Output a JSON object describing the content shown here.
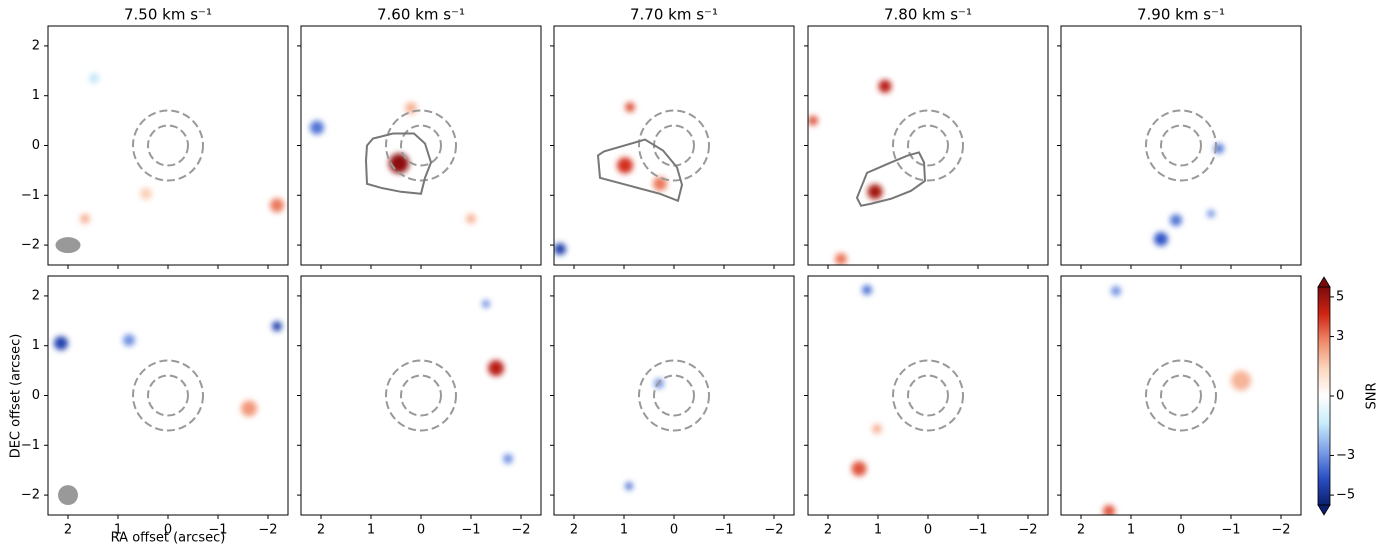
{
  "chart_data": {
    "type": "channel_map",
    "xlabel": "RA offset (arcsec)",
    "ylabel": "DEC offset (arcsec)",
    "xlim": [
      2.4,
      -2.4
    ],
    "ylim": [
      -2.4,
      2.4
    ],
    "xticks": [
      2,
      1,
      0,
      {
        "value": -1,
        "label": "−1"
      },
      {
        "value": -2,
        "label": "−2"
      }
    ],
    "yticks": [
      {
        "value": -2,
        "label": "−2"
      },
      {
        "value": -1,
        "label": "−1"
      },
      0,
      1,
      2
    ],
    "circle_radii": [
      0.4,
      0.7
    ],
    "colorbar": {
      "label": "SNR",
      "lim": [
        -5.5,
        5.5
      ],
      "ticks": [
        {
          "value": -5,
          "label": "−5"
        },
        {
          "value": -3,
          "label": "−3"
        },
        0,
        3,
        5
      ],
      "colors": [
        "#0a1f6e",
        "#2b50c4",
        "#7ea0e8",
        "#c8ecfa",
        "#ffffff",
        "#fbd7bf",
        "#f08a6a",
        "#d02515",
        "#7a0a0a"
      ]
    },
    "panels": [
      {
        "title": "7.50 km s⁻¹",
        "beam": {
          "x": 2,
          "y": -2,
          "major": 0.5,
          "minor": 0.32
        },
        "sources": [
          {
            "x": -2.18,
            "y": -1.2,
            "snr": 3,
            "r": 0.14
          },
          {
            "x": 0.44,
            "y": -0.97,
            "snr": 1.5,
            "r": 0.12
          },
          {
            "x": 1.48,
            "y": 1.35,
            "snr": -1.5,
            "r": 0.1
          },
          {
            "x": 1.66,
            "y": -1.47,
            "snr": 2,
            "r": 0.1
          }
        ]
      },
      {
        "title": "7.60 km s⁻¹",
        "contour": {
          "x": [
            1.08,
            0.96,
            0.56,
            0.14,
            -0.08,
            -0.2,
            -0.08,
            0,
            0.4,
            0.8,
            1.08,
            1.1
          ],
          "y": [
            0,
            0.14,
            0.24,
            0.24,
            0.04,
            -0.34,
            -0.65,
            -0.97,
            -0.93,
            -0.85,
            -0.77,
            -0.3
          ]
        },
        "sources": [
          {
            "x": 0.44,
            "y": -0.36,
            "snr": 5.2,
            "r": 0.2
          },
          {
            "x": 0.2,
            "y": 0.75,
            "snr": 2,
            "r": 0.12
          },
          {
            "x": 2.08,
            "y": 0.36,
            "snr": -3.5,
            "r": 0.14
          },
          {
            "x": -1.0,
            "y": -1.47,
            "snr": 2,
            "r": 0.1
          }
        ]
      },
      {
        "title": "7.70 km s⁻¹",
        "contour": {
          "x": [
            1.52,
            1.4,
            0.58,
            0.22,
            -0.06,
            -0.16,
            -0.08,
            0.28,
            0.88,
            1.48
          ],
          "y": [
            -0.2,
            -0.12,
            0.12,
            -0.1,
            -0.44,
            -0.79,
            -1.11,
            -0.97,
            -0.81,
            -0.65
          ]
        },
        "sources": [
          {
            "x": 0.98,
            "y": -0.4,
            "snr": 4,
            "r": 0.16
          },
          {
            "x": 0.28,
            "y": -0.77,
            "snr": 3,
            "r": 0.14
          },
          {
            "x": 0.88,
            "y": 0.77,
            "snr": 3.5,
            "r": 0.1
          },
          {
            "x": 2.28,
            "y": -2.08,
            "snr": -4.5,
            "r": 0.12
          }
        ]
      },
      {
        "title": "7.80 km s⁻¹",
        "contour": {
          "x": [
            1.42,
            1.22,
            0.74,
            0.4,
            0.18,
            0.08,
            0.06,
            0.34,
            0.74,
            1.14,
            1.34
          ],
          "y": [
            -1.05,
            -0.55,
            -0.34,
            -0.2,
            -0.14,
            -0.34,
            -0.71,
            -0.91,
            -1.07,
            -1.17,
            -1.21
          ]
        },
        "sources": [
          {
            "x": 1.06,
            "y": -0.93,
            "snr": 4.8,
            "r": 0.15
          },
          {
            "x": 0.86,
            "y": 1.19,
            "snr": 4.5,
            "r": 0.13
          },
          {
            "x": 2.3,
            "y": 0.5,
            "snr": 3.5,
            "r": 0.1
          },
          {
            "x": 1.74,
            "y": -2.28,
            "snr": 3,
            "r": 0.12
          }
        ]
      },
      {
        "title": "7.90 km s⁻¹",
        "sources": [
          {
            "x": 0.4,
            "y": -1.88,
            "snr": -4,
            "r": 0.14
          },
          {
            "x": 0.1,
            "y": -1.5,
            "snr": -3.5,
            "r": 0.12
          },
          {
            "x": -0.76,
            "y": -0.06,
            "snr": -3.5,
            "r": 0.1
          },
          {
            "x": -0.6,
            "y": -1.37,
            "snr": -3,
            "r": 0.08
          }
        ]
      },
      {
        "beam": {
          "x": 2,
          "y": -2,
          "major": 0.4,
          "minor": 0.4
        },
        "sources": [
          {
            "x": 2.14,
            "y": 1.05,
            "snr": -4.5,
            "r": 0.14
          },
          {
            "x": -2.18,
            "y": 1.39,
            "snr": -4.5,
            "r": 0.1
          },
          {
            "x": 0.78,
            "y": 1.11,
            "snr": -3,
            "r": 0.12
          },
          {
            "x": -1.62,
            "y": -0.26,
            "snr": 2.5,
            "r": 0.16
          }
        ]
      },
      {
        "sources": [
          {
            "x": -1.5,
            "y": 0.55,
            "snr": 4.5,
            "r": 0.16
          },
          {
            "x": -1.74,
            "y": -1.27,
            "snr": -3,
            "r": 0.1
          },
          {
            "x": -1.3,
            "y": 1.84,
            "snr": -3,
            "r": 0.08
          }
        ]
      },
      {
        "sources": [
          {
            "x": 0.3,
            "y": 0.24,
            "snr": -3,
            "r": 0.1
          },
          {
            "x": 0.9,
            "y": -1.82,
            "snr": -3.5,
            "r": 0.08
          }
        ]
      },
      {
        "sources": [
          {
            "x": 1.38,
            "y": -1.47,
            "snr": 3.5,
            "r": 0.15
          },
          {
            "x": 1.22,
            "y": 2.12,
            "snr": -3.5,
            "r": 0.1
          },
          {
            "x": 1.02,
            "y": -0.67,
            "snr": 2,
            "r": 0.1
          }
        ]
      },
      {
        "sources": [
          {
            "x": 1.44,
            "y": -2.32,
            "snr": 3.5,
            "r": 0.12
          },
          {
            "x": 1.3,
            "y": 2.1,
            "snr": -3,
            "r": 0.1
          },
          {
            "x": -1.2,
            "y": 0.3,
            "snr": 2,
            "r": 0.2
          }
        ]
      }
    ]
  }
}
